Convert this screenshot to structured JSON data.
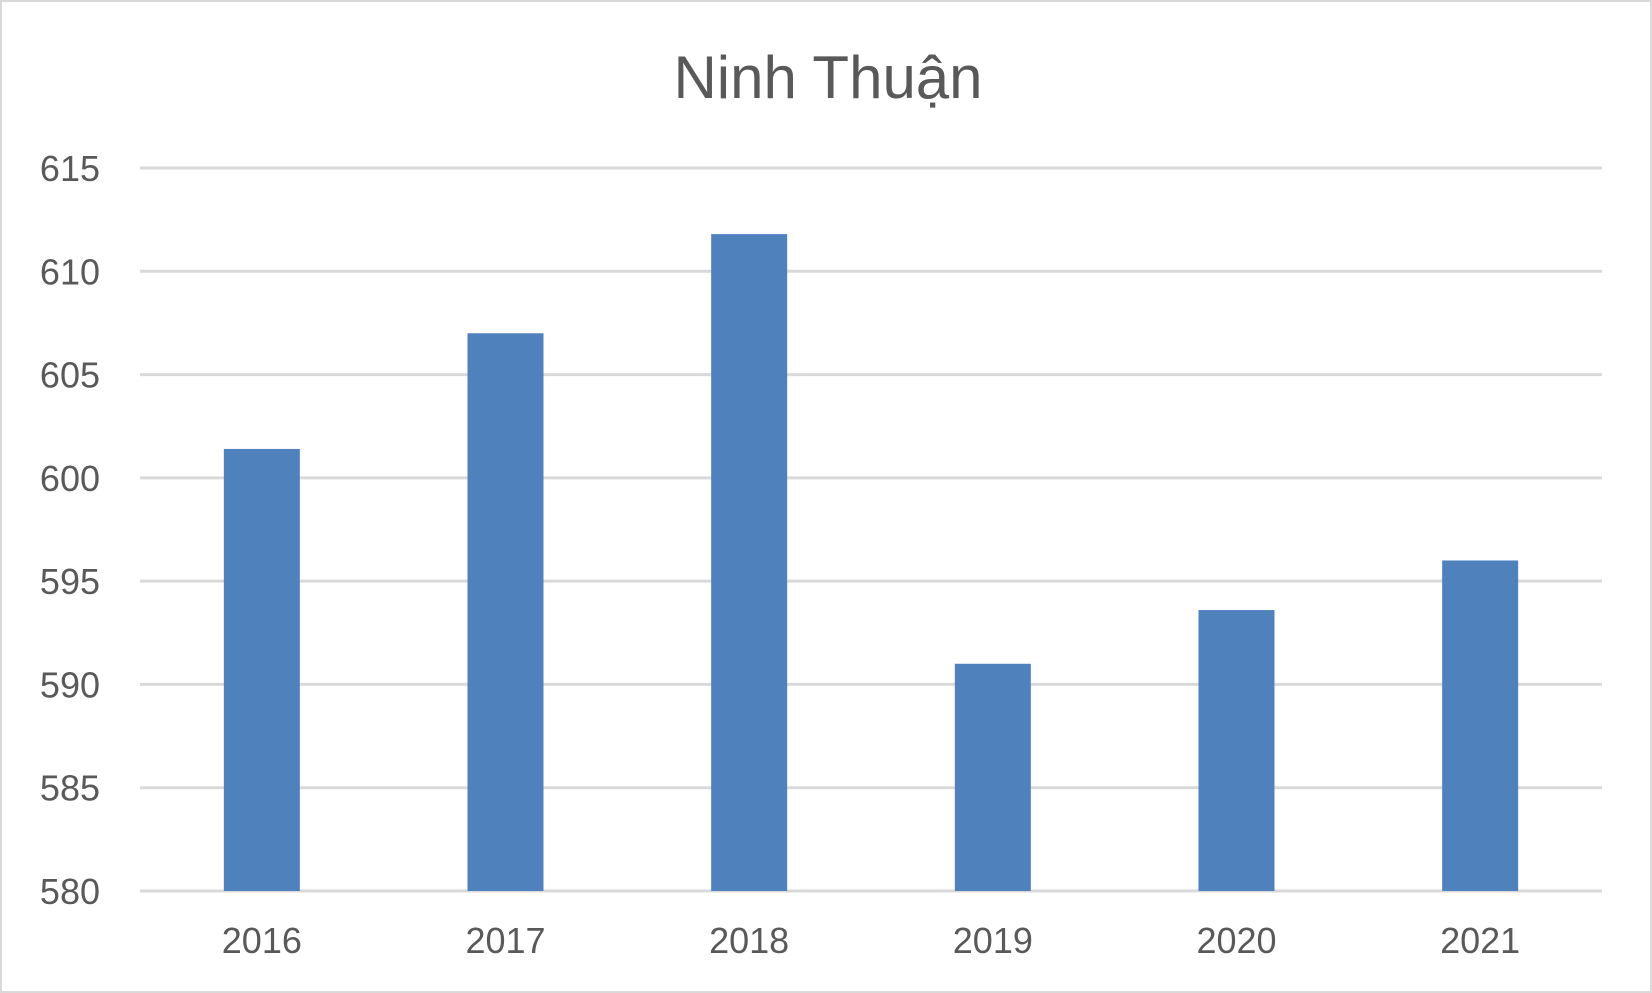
{
  "chart_data": {
    "type": "bar",
    "title": "Ninh Thuận",
    "xlabel": "",
    "ylabel": "",
    "categories": [
      "2016",
      "2017",
      "2018",
      "2019",
      "2020",
      "2021"
    ],
    "series": [
      {
        "values": [
          601.4,
          607.0,
          611.8,
          591.0,
          593.6,
          596.0
        ],
        "color": "#4f81bd"
      }
    ],
    "ylim": [
      580,
      615
    ],
    "yticks": [
      580,
      585,
      590,
      595,
      600,
      605,
      610,
      615
    ],
    "grid": true,
    "gridline_color": "#d9d9d9",
    "text_color": "#595959",
    "legend": "none"
  }
}
